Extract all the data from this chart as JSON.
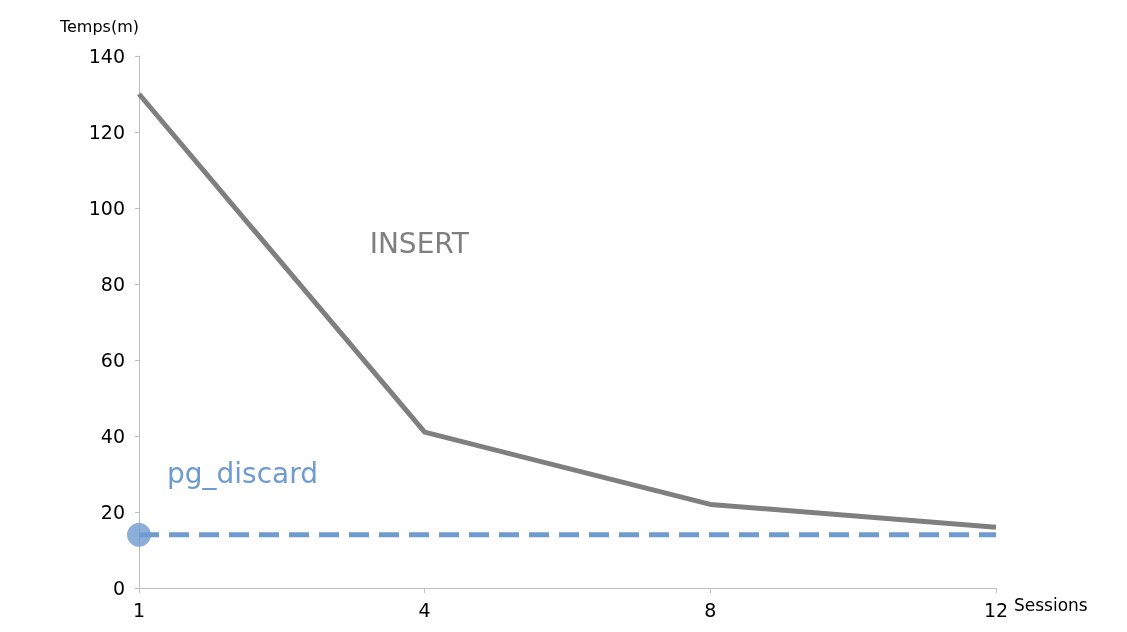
{
  "chart_data": {
    "type": "line",
    "xlabel": "Sessions",
    "ylabel": "Temps(m)",
    "categories": [
      "1",
      "4",
      "8",
      "12"
    ],
    "series": [
      {
        "name": "INSERT",
        "color": "#7f7f7f",
        "values": [
          130,
          41,
          22,
          16
        ],
        "line_style": "solid",
        "marker": "none"
      },
      {
        "name": "pg_discard",
        "color": "#6f9bd1",
        "values": [
          14,
          14,
          14,
          14
        ],
        "line_style": "dashed",
        "marker": "none"
      },
      {
        "type": "scatter",
        "color": "#6f9bd1",
        "x": [
          "1"
        ],
        "values": [
          14
        ],
        "marker": "circle"
      }
    ],
    "ylim": [
      0,
      140
    ],
    "yticks": [
      0,
      20,
      40,
      60,
      80,
      100,
      120,
      140
    ],
    "grid": false,
    "legend": false
  }
}
